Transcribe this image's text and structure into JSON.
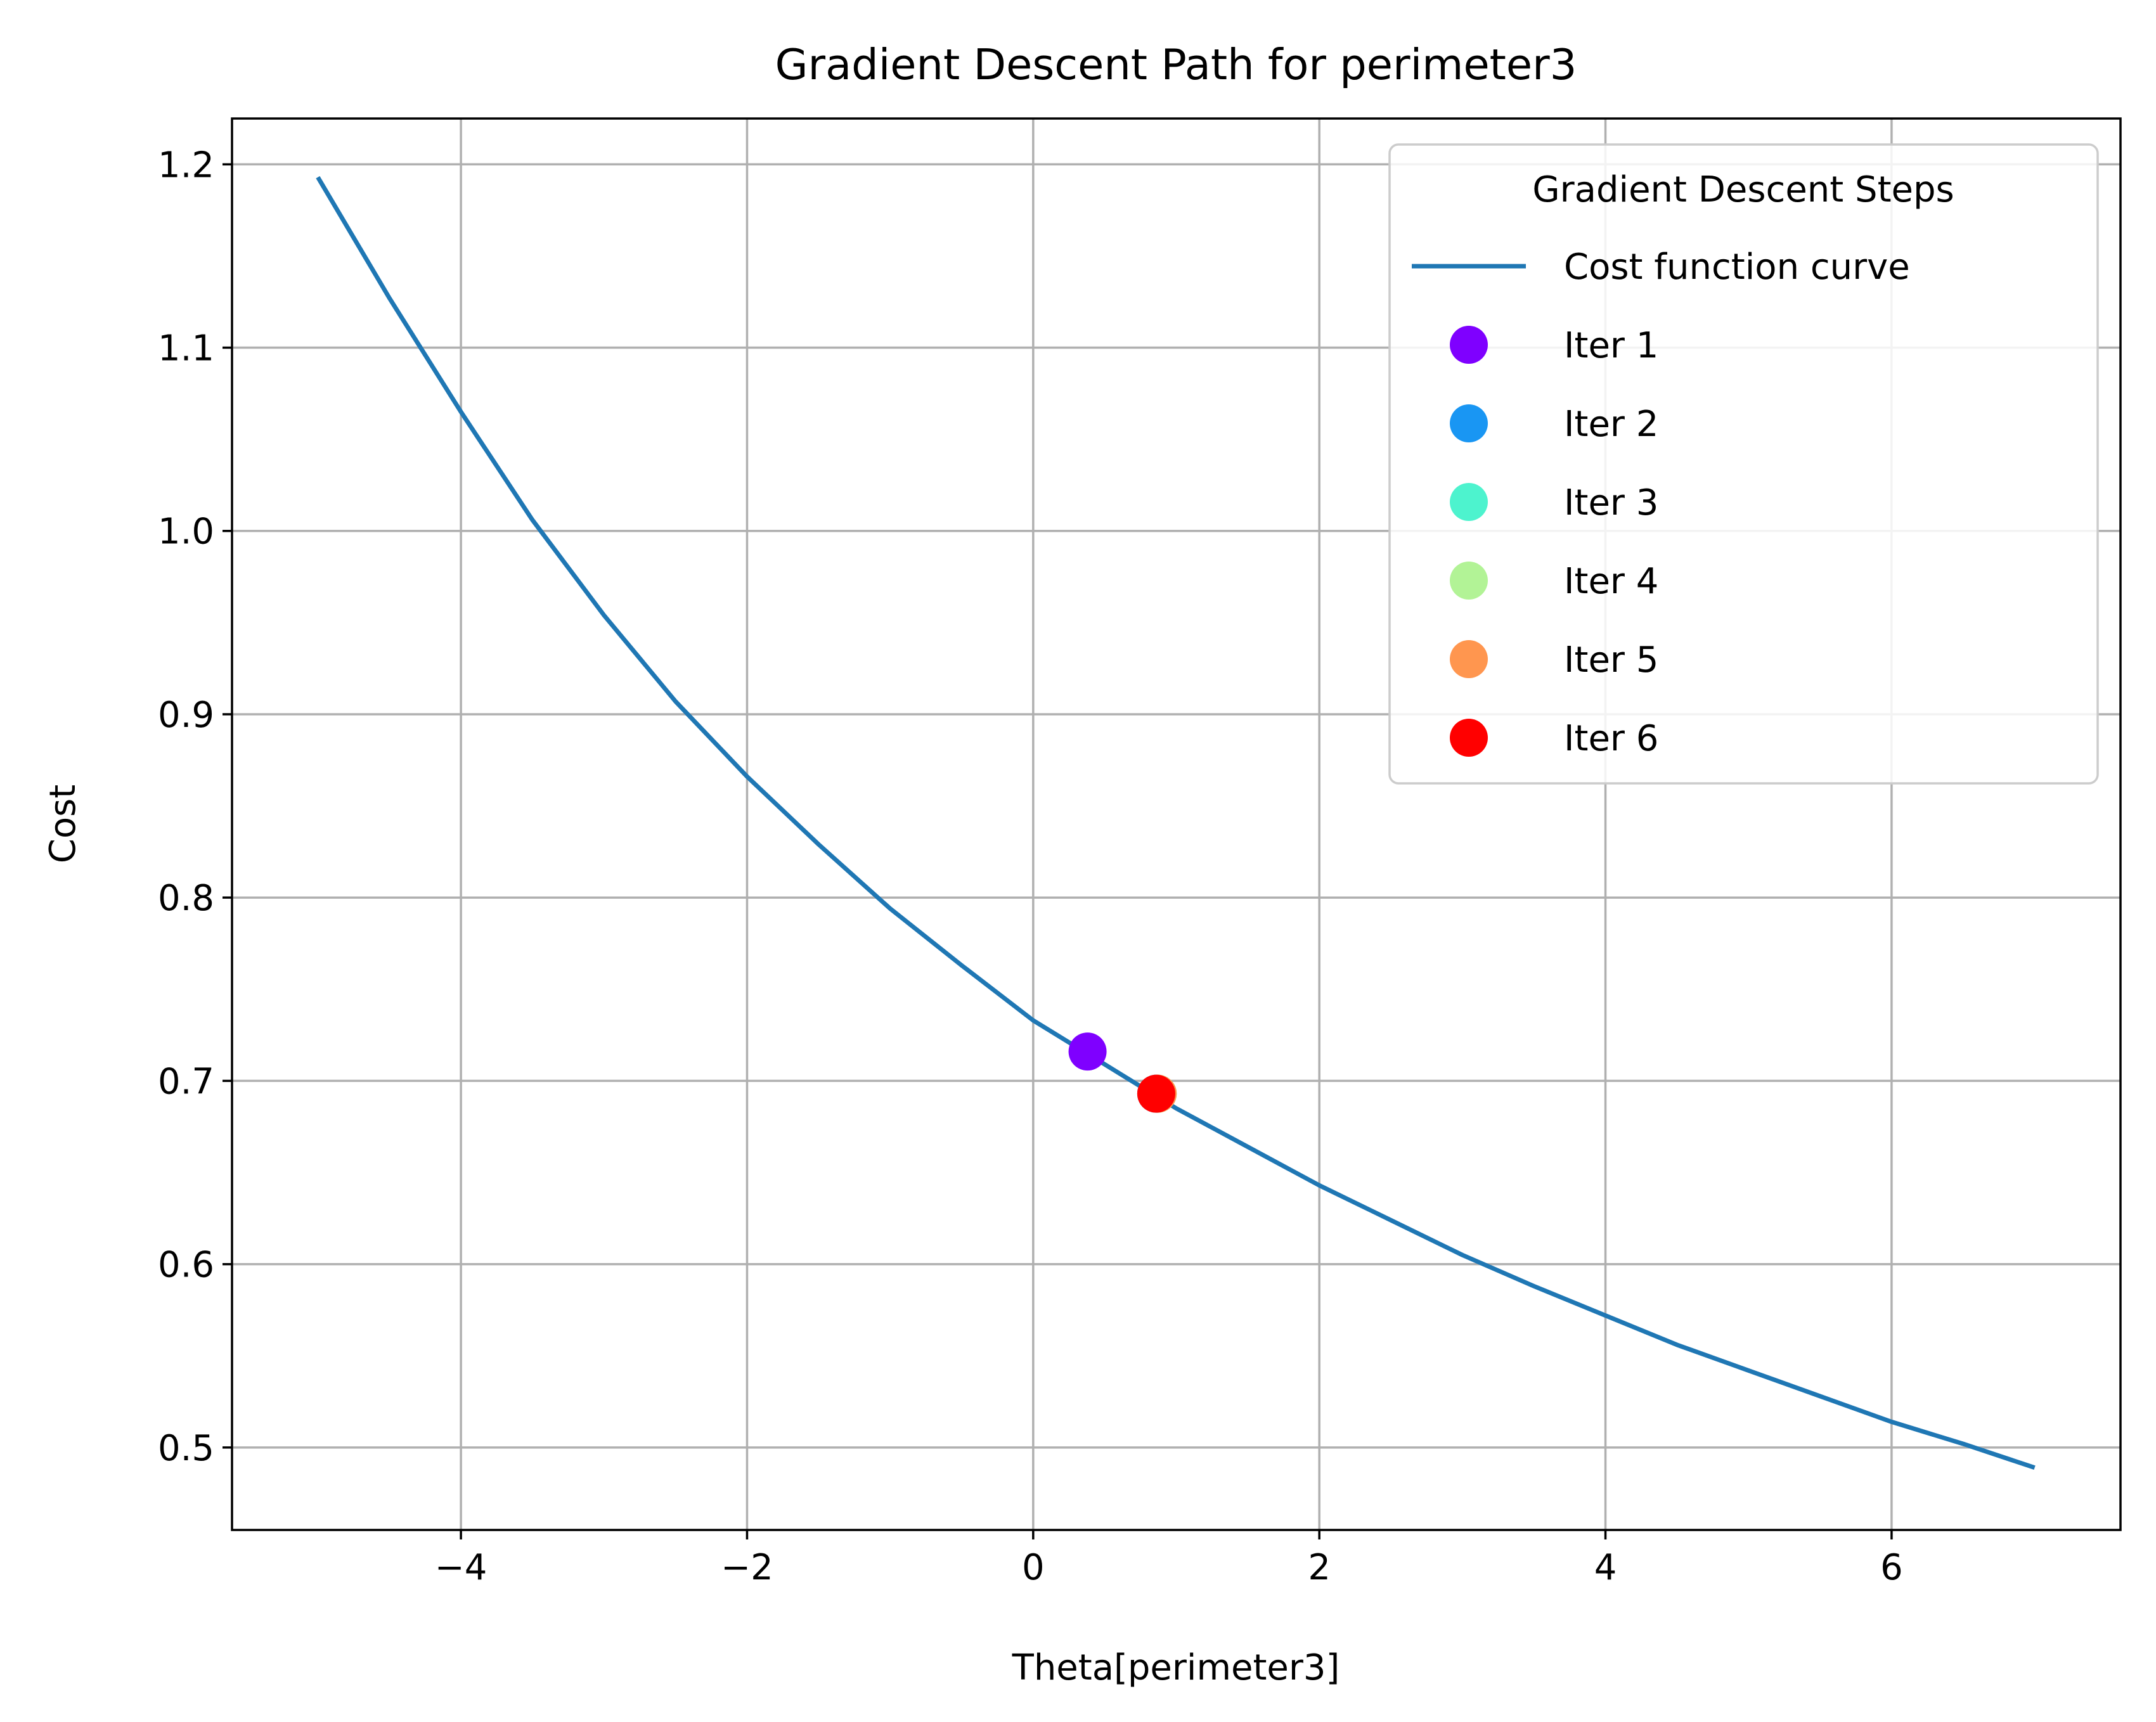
{
  "chart_data": {
    "type": "line",
    "title": "Gradient Descent Path for perimeter3",
    "xlabel": "Theta[perimeter3]",
    "ylabel": "Cost",
    "xlim": [
      -5.6,
      7.6
    ],
    "ylim": [
      0.455,
      1.225
    ],
    "xticks": [
      -4,
      -2,
      0,
      2,
      4,
      6
    ],
    "xtick_labels": [
      "−4",
      "−2",
      "0",
      "2",
      "4",
      "6"
    ],
    "yticks": [
      0.5,
      0.6,
      0.7,
      0.8,
      0.9,
      1.0,
      1.1,
      1.2
    ],
    "ytick_labels": [
      "0.5",
      "0.6",
      "0.7",
      "0.8",
      "0.9",
      "1.0",
      "1.1",
      "1.2"
    ],
    "grid": true,
    "legend": {
      "title": "Gradient Descent Steps",
      "position": "upper right"
    },
    "curve": {
      "name": "Cost function curve",
      "color": "#1f77b4",
      "x": [
        -5,
        -4.5,
        -4,
        -3.5,
        -3,
        -2.5,
        -2,
        -1.5,
        -1,
        -0.5,
        0,
        0.5,
        1,
        1.5,
        2,
        2.5,
        3,
        3.5,
        4,
        4.5,
        5,
        5.5,
        6,
        6.5,
        7
      ],
      "y": [
        1.193,
        1.127,
        1.065,
        1.006,
        0.954,
        0.907,
        0.866,
        0.829,
        0.794,
        0.763,
        0.733,
        0.709,
        0.685,
        0.664,
        0.643,
        0.624,
        0.605,
        0.588,
        0.572,
        0.556,
        0.542,
        0.528,
        0.514,
        0.502,
        0.489
      ]
    },
    "points": [
      {
        "name": "Iter 1",
        "x": 0.38,
        "y": 0.716,
        "color": "#7f00ff"
      },
      {
        "name": "Iter 2",
        "x": 0.86,
        "y": 0.693,
        "color": "#1996f3"
      },
      {
        "name": "Iter 3",
        "x": 0.87,
        "y": 0.693,
        "color": "#4df3ce"
      },
      {
        "name": "Iter 4",
        "x": 0.87,
        "y": 0.693,
        "color": "#b2f396"
      },
      {
        "name": "Iter 5",
        "x": 0.87,
        "y": 0.693,
        "color": "#ff964f"
      },
      {
        "name": "Iter 6",
        "x": 0.86,
        "y": 0.693,
        "color": "#ff0000"
      }
    ]
  }
}
